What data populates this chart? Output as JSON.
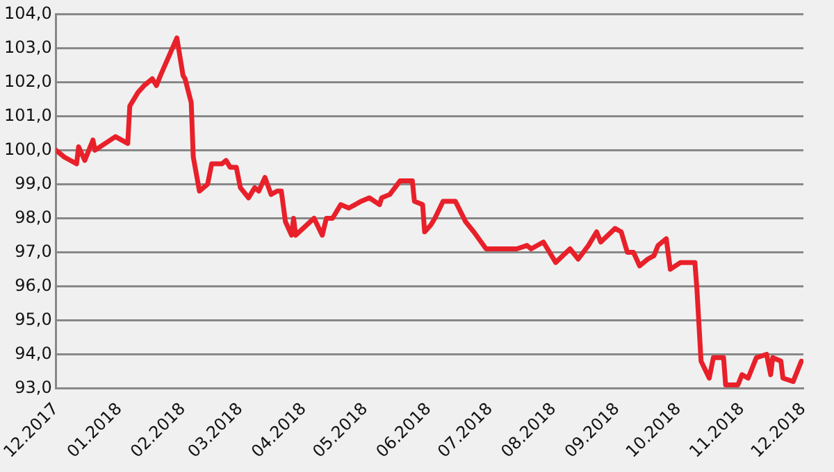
{
  "chart_data": {
    "type": "line",
    "x": [
      "2017-12-01",
      "2017-12-05",
      "2017-12-11",
      "2017-12-12",
      "2017-12-15",
      "2017-12-19",
      "2017-12-20",
      "2017-12-30",
      "2018-01-05",
      "2018-01-06",
      "2018-01-10",
      "2018-01-13",
      "2018-01-17",
      "2018-01-19",
      "2018-01-21",
      "2018-01-29",
      "2018-02-01",
      "2018-02-02",
      "2018-02-05",
      "2018-02-06",
      "2018-02-09",
      "2018-02-13",
      "2018-02-15",
      "2018-02-20",
      "2018-02-22",
      "2018-02-24",
      "2018-02-27",
      "2018-03-01",
      "2018-03-05",
      "2018-03-08",
      "2018-03-10",
      "2018-03-13",
      "2018-03-16",
      "2018-03-19",
      "2018-03-21",
      "2018-03-23",
      "2018-03-26",
      "2018-03-27",
      "2018-03-28",
      "2018-04-06",
      "2018-04-10",
      "2018-04-12",
      "2018-04-15",
      "2018-04-19",
      "2018-04-23",
      "2018-04-29",
      "2018-05-03",
      "2018-05-08",
      "2018-05-09",
      "2018-05-13",
      "2018-05-18",
      "2018-05-24",
      "2018-05-25",
      "2018-05-29",
      "2018-05-30",
      "2018-06-02",
      "2018-06-04",
      "2018-06-08",
      "2018-06-14",
      "2018-06-19",
      "2018-06-23",
      "2018-06-29",
      "2018-07-02",
      "2018-07-10",
      "2018-07-14",
      "2018-07-19",
      "2018-07-21",
      "2018-07-27",
      "2018-07-29",
      "2018-08-02",
      "2018-08-09",
      "2018-08-13",
      "2018-08-18",
      "2018-08-22",
      "2018-08-24",
      "2018-08-31",
      "2018-09-03",
      "2018-09-06",
      "2018-09-09",
      "2018-09-12",
      "2018-09-16",
      "2018-09-19",
      "2018-09-21",
      "2018-09-25",
      "2018-09-27",
      "2018-10-02",
      "2018-10-09",
      "2018-10-10",
      "2018-10-12",
      "2018-10-16",
      "2018-10-18",
      "2018-10-23",
      "2018-10-24",
      "2018-10-30",
      "2018-11-01",
      "2018-11-04",
      "2018-11-08",
      "2018-11-13",
      "2018-11-15",
      "2018-11-16",
      "2018-11-20",
      "2018-11-21",
      "2018-11-26",
      "2018-11-30"
    ],
    "series": [
      {
        "color": "#e8202a",
        "values": [
          100.0,
          99.8,
          99.6,
          100.1,
          99.7,
          100.3,
          100.0,
          100.4,
          100.2,
          101.3,
          101.7,
          101.9,
          102.1,
          101.9,
          102.2,
          103.3,
          102.2,
          102.1,
          101.4,
          99.8,
          98.8,
          99.0,
          99.6,
          99.6,
          99.7,
          99.5,
          99.5,
          98.9,
          98.6,
          98.9,
          98.8,
          99.2,
          98.7,
          98.8,
          98.8,
          97.9,
          97.5,
          98.0,
          97.5,
          98.0,
          97.5,
          98.0,
          98.0,
          98.4,
          98.3,
          98.5,
          98.6,
          98.4,
          98.6,
          98.7,
          99.1,
          99.1,
          98.5,
          98.4,
          97.6,
          97.8,
          98.0,
          98.5,
          98.5,
          97.9,
          97.6,
          97.1,
          97.1,
          97.1,
          97.1,
          97.2,
          97.1,
          97.3,
          97.1,
          96.7,
          97.1,
          96.8,
          97.2,
          97.6,
          97.3,
          97.7,
          97.6,
          97.0,
          97.0,
          96.6,
          96.8,
          96.9,
          97.2,
          97.4,
          96.5,
          96.7,
          96.7,
          95.9,
          93.8,
          93.3,
          93.9,
          93.9,
          93.1,
          93.1,
          93.4,
          93.3,
          93.9,
          94.0,
          93.4,
          93.9,
          93.8,
          93.3,
          93.2,
          93.8
        ]
      }
    ],
    "xlim": [
      "2017-12-01",
      "2018-12-01"
    ],
    "xticks": [
      {
        "value": "2017-12-01",
        "label": "12.2017"
      },
      {
        "value": "2018-01-01",
        "label": "01.2018"
      },
      {
        "value": "2018-02-01",
        "label": "02.2018"
      },
      {
        "value": "2018-03-01",
        "label": "03.2018"
      },
      {
        "value": "2018-04-01",
        "label": "04.2018"
      },
      {
        "value": "2018-05-01",
        "label": "05.2018"
      },
      {
        "value": "2018-06-01",
        "label": "06.2018"
      },
      {
        "value": "2018-07-01",
        "label": "07.2018"
      },
      {
        "value": "2018-08-01",
        "label": "08.2018"
      },
      {
        "value": "2018-09-01",
        "label": "09.2018"
      },
      {
        "value": "2018-10-01",
        "label": "10.2018"
      },
      {
        "value": "2018-11-01",
        "label": "11.2018"
      },
      {
        "value": "2018-12-01",
        "label": "12.2018"
      }
    ],
    "ylim": [
      93,
      104
    ],
    "yticks": [
      {
        "value": 93,
        "label": "93,0"
      },
      {
        "value": 94,
        "label": "94,0"
      },
      {
        "value": 95,
        "label": "95,0"
      },
      {
        "value": 96,
        "label": "96,0"
      },
      {
        "value": 97,
        "label": "97,0"
      },
      {
        "value": 98,
        "label": "98,0"
      },
      {
        "value": 99,
        "label": "99,0"
      },
      {
        "value": 100,
        "label": "100,0"
      },
      {
        "value": 101,
        "label": "101,0"
      },
      {
        "value": 102,
        "label": "102,0"
      },
      {
        "value": 103,
        "label": "103,0"
      },
      {
        "value": 104,
        "label": "104,0"
      }
    ],
    "grid": "y",
    "legend": false,
    "marker": "none",
    "line_style": "solid"
  }
}
